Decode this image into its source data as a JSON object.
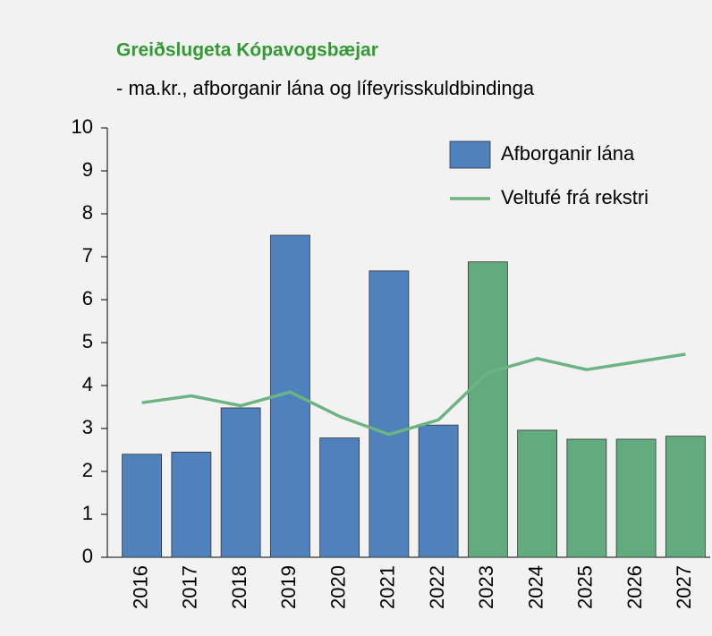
{
  "chart_data": {
    "type": "bar+line",
    "title": "Greiðslugeta Kópavogsbæjar",
    "subtitle": "- ma.kr., afborganir lána og lífeyrisskuldbindinga",
    "categories": [
      "2016",
      "2017",
      "2018",
      "2019",
      "2020",
      "2021",
      "2022",
      "2023",
      "2024",
      "2025",
      "2026",
      "2027"
    ],
    "series": [
      {
        "name": "Afborganir lána",
        "type": "bar",
        "color": "#4f81bd",
        "colors": [
          "#4f81bd",
          "#4f81bd",
          "#4f81bd",
          "#4f81bd",
          "#4f81bd",
          "#4f81bd",
          "#4f81bd",
          "#62ab7e",
          "#62ab7e",
          "#62ab7e",
          "#62ab7e",
          "#62ab7e"
        ],
        "values": [
          2.4,
          2.45,
          3.48,
          7.5,
          2.78,
          6.67,
          3.08,
          6.88,
          2.96,
          2.75,
          2.75,
          2.82
        ]
      },
      {
        "name": "Veltufé frá rekstri",
        "type": "line",
        "color": "#6db383",
        "values": [
          3.6,
          3.76,
          3.53,
          3.85,
          3.28,
          2.86,
          3.2,
          4.3,
          4.63,
          4.37,
          4.55,
          4.73
        ]
      }
    ],
    "ylim": [
      0,
      10
    ],
    "yticks": [
      0,
      1,
      2,
      3,
      4,
      5,
      6,
      7,
      8,
      9,
      10
    ],
    "legend": "top-right"
  }
}
